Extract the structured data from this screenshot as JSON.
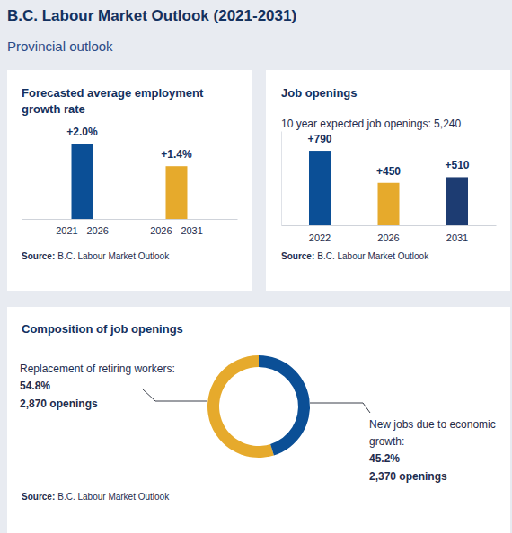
{
  "header": {
    "title": "B.C. Labour Market Outlook (2021-2031)",
    "subtitle": "Provincial outlook"
  },
  "chart_data": [
    {
      "type": "bar",
      "title": "Forecasted average employment growth rate",
      "categories": [
        "2021 - 2026",
        "2026 - 2031"
      ],
      "values": [
        2.0,
        1.4
      ],
      "value_labels": [
        "+2.0%",
        "+1.4%"
      ],
      "colors": [
        "#0b4f96",
        "#e6aa2c"
      ],
      "data_labels": true,
      "tick_labels": "x",
      "ylim": [
        0,
        2.5
      ],
      "source": {
        "label": "Source:",
        "text": "B.C. Labour Market Outlook"
      }
    },
    {
      "type": "bar",
      "title": "Job openings",
      "subtitle": "10 year expected job openings: 5,240",
      "categories": [
        "2022",
        "2026",
        "2031"
      ],
      "values": [
        790,
        450,
        510
      ],
      "value_labels": [
        "+790",
        "+450",
        "+510"
      ],
      "colors": [
        "#0b4f96",
        "#e6aa2c",
        "#1d3c72"
      ],
      "data_labels": true,
      "tick_labels": "x",
      "ylim": [
        0,
        1000
      ],
      "source": {
        "label": "Source:",
        "text": "B.C. Labour Market Outlook"
      }
    },
    {
      "type": "donut",
      "title": "Composition of job openings",
      "categories": [
        "Replacement of retiring workers:",
        "New jobs due to economic growth:"
      ],
      "values": [
        54.8,
        45.2
      ],
      "value_labels": [
        "54.8%",
        "45.2%"
      ],
      "openings": [
        2870,
        2370
      ],
      "openings_labels": [
        "2,870 openings",
        "2,370 openings"
      ],
      "colors": [
        "#e6aa2c",
        "#0b4f96"
      ],
      "data_labels": true,
      "source": {
        "label": "Source:",
        "text": "B.C. Labour Market Outlook"
      }
    }
  ]
}
